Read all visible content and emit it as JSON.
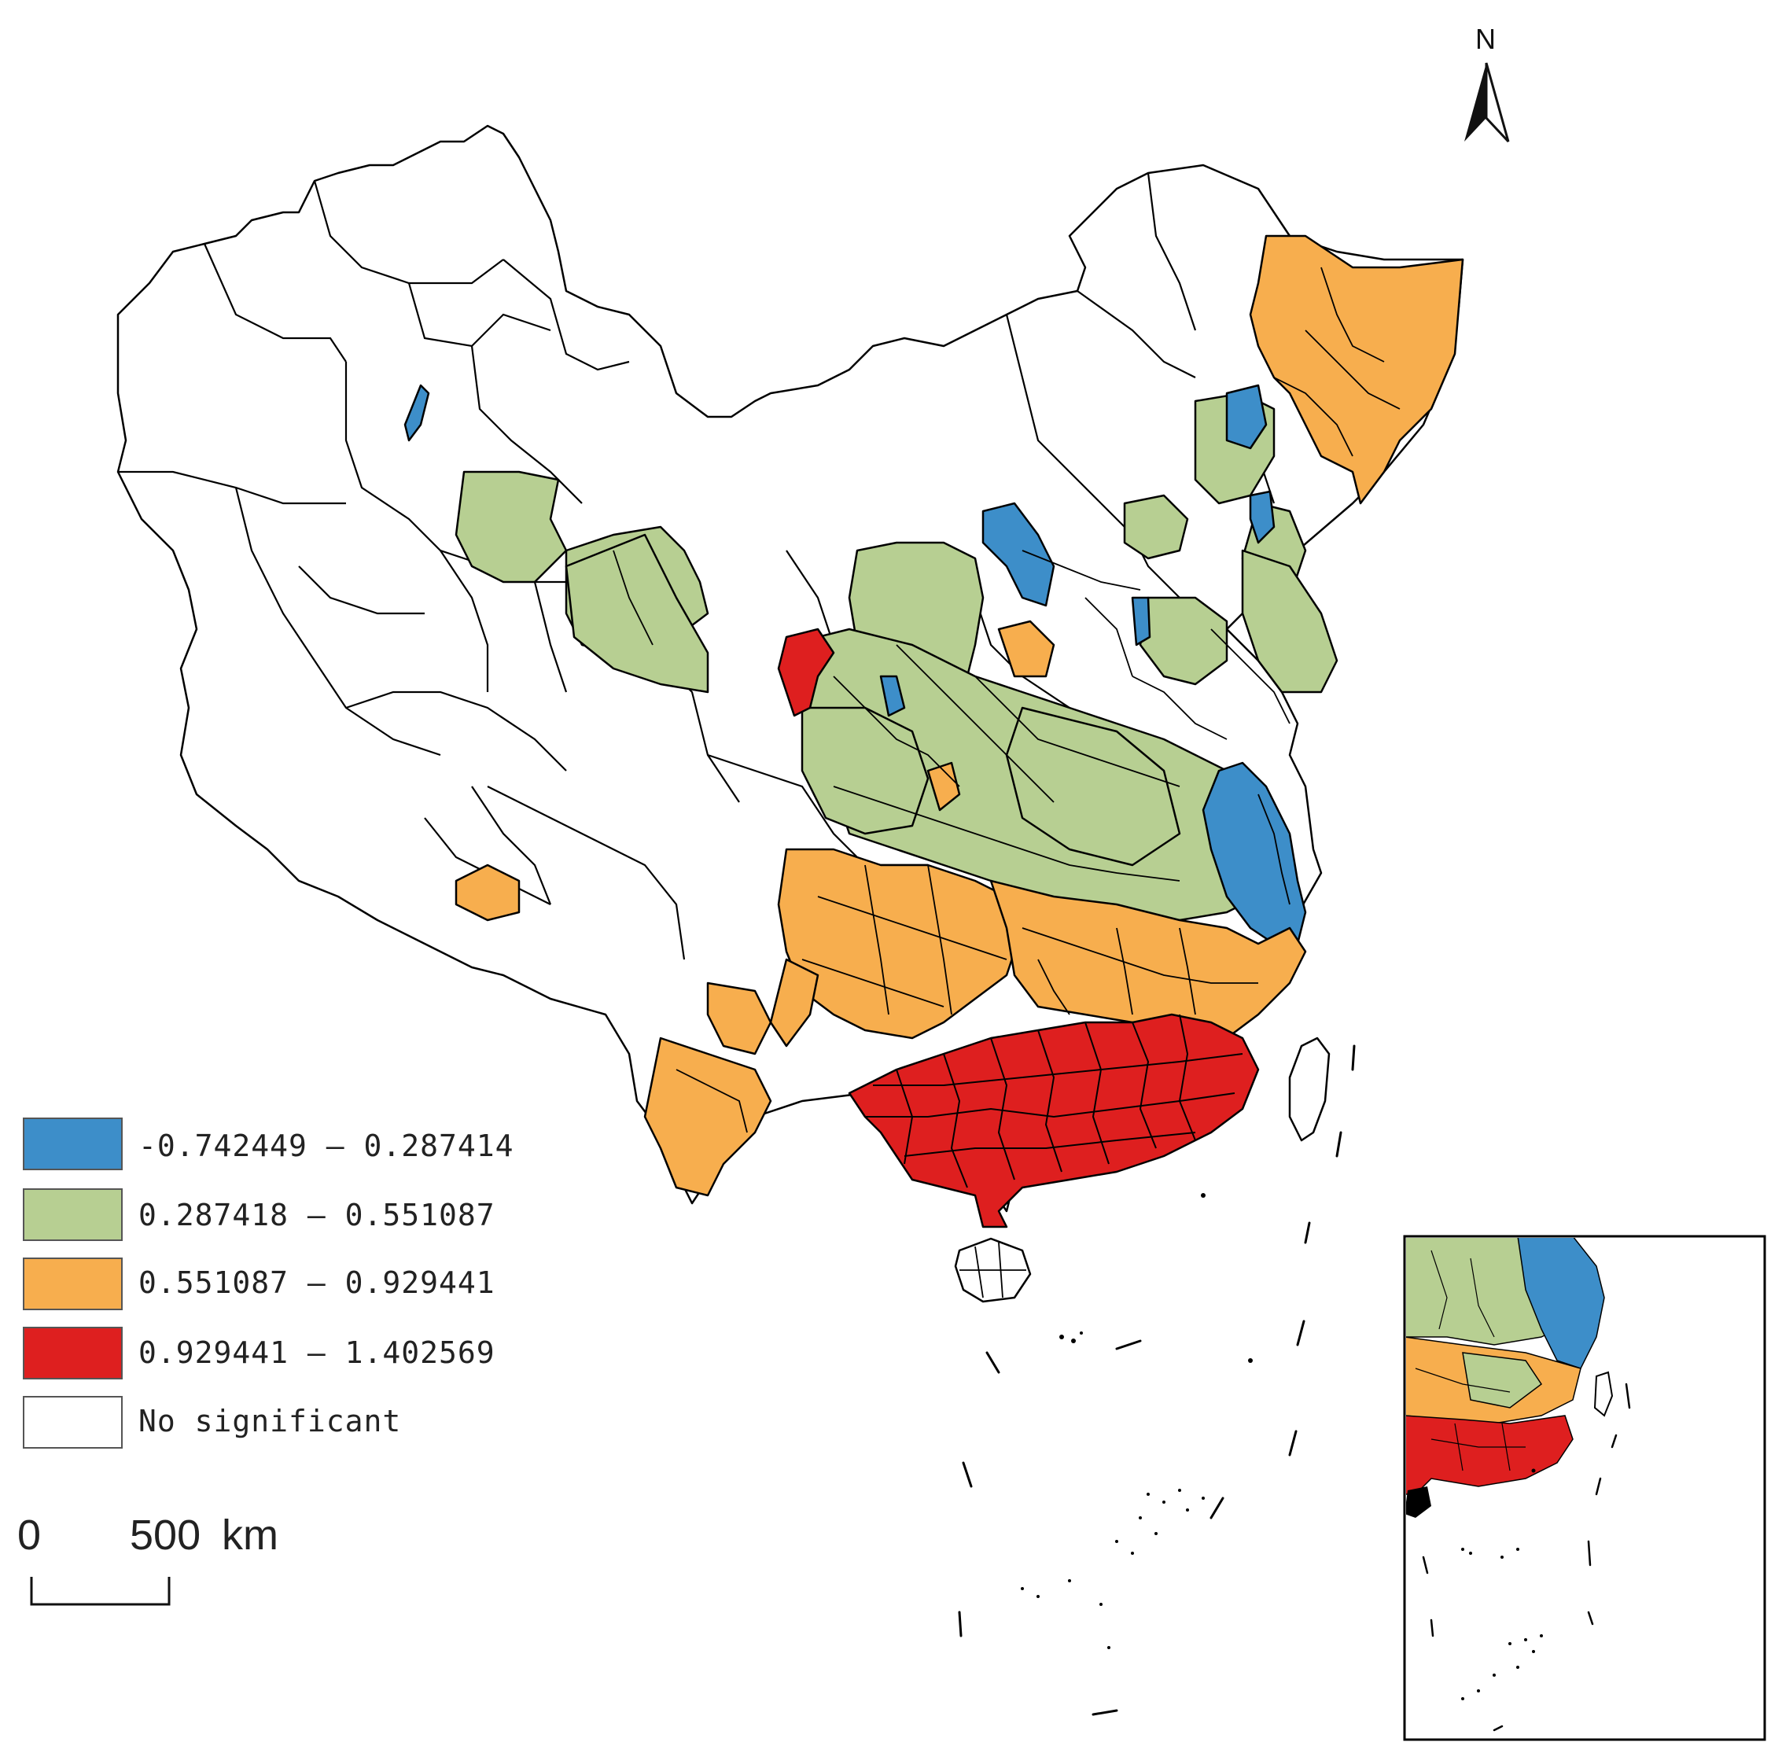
{
  "map": {
    "north_label": "N",
    "legend": [
      {
        "label": "-0.742449 — 0.287414",
        "color": "#3d8ec9"
      },
      {
        "label": "0.287418 — 0.551087",
        "color": "#b7cf92"
      },
      {
        "label": "0.551087 — 0.929441",
        "color": "#f7ae4e"
      },
      {
        "label": "0.929441 — 1.402569",
        "color": "#de1f1f"
      },
      {
        "label": "No significant",
        "color": "#ffffff"
      }
    ],
    "scale_bar": {
      "label_zero": "0",
      "label_distance": "500",
      "label_unit": "km"
    }
  }
}
